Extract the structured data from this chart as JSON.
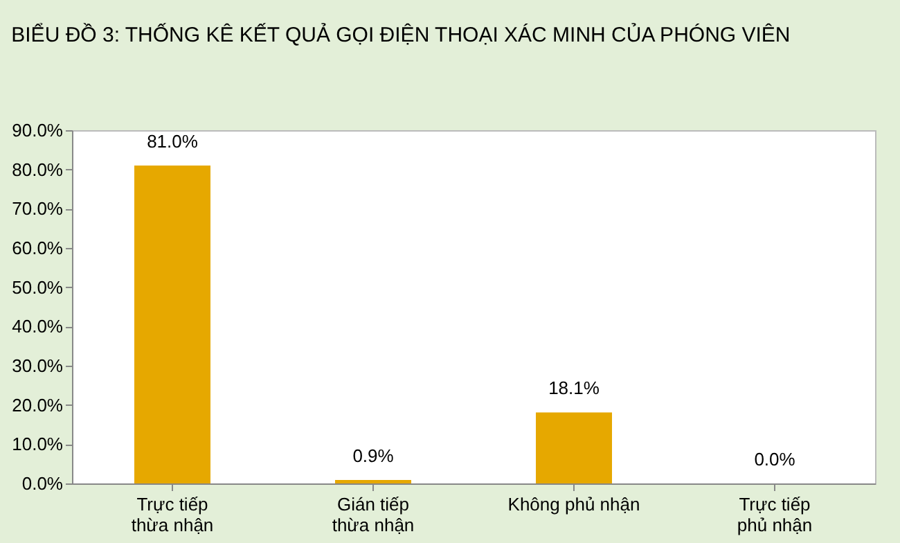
{
  "chart_data": {
    "type": "bar",
    "title": "BIỂU ĐỒ 3: THỐNG KÊ KẾT QUẢ GỌI ĐIỆN THOẠI XÁC MINH CỦA PHÓNG VIÊN",
    "categories": [
      "Trực tiếp\nthừa nhận",
      "Gián tiếp\nthừa nhận",
      "Không phủ nhận",
      "Trực tiếp\nphủ nhận"
    ],
    "values": [
      81.0,
      0.9,
      18.1,
      0.0
    ],
    "value_labels": [
      "81.0%",
      "0.9%",
      "18.1%",
      "0.0%"
    ],
    "color": "#e6a800",
    "ylim": [
      0,
      90
    ],
    "yticks": [
      {
        "value": 0,
        "label": "0.0%"
      },
      {
        "value": 10,
        "label": "10.0%"
      },
      {
        "value": 20,
        "label": "20.0%"
      },
      {
        "value": 30,
        "label": "30.0%"
      },
      {
        "value": 40,
        "label": "40.0%"
      },
      {
        "value": 50,
        "label": "50.0%"
      },
      {
        "value": 60,
        "label": "60.0%"
      },
      {
        "value": 70,
        "label": "70.0%"
      },
      {
        "value": 80,
        "label": "80.0%"
      },
      {
        "value": 90,
        "label": "90.0%"
      }
    ],
    "grid": false
  }
}
